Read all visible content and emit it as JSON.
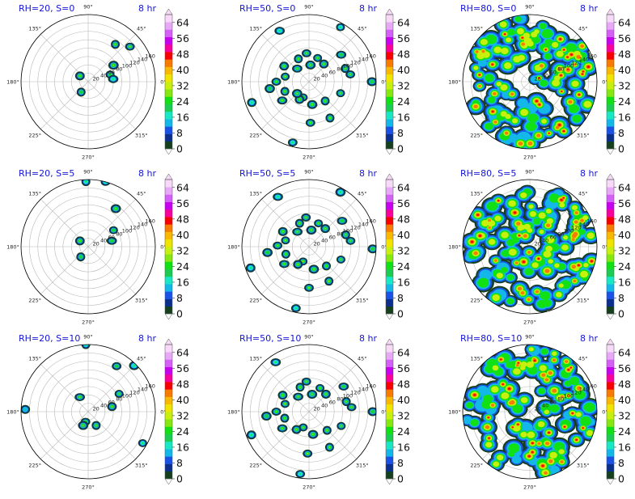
{
  "colorbar": {
    "tick_labels": [
      "0",
      "8",
      "16",
      "24",
      "32",
      "40",
      "48",
      "56",
      "64"
    ],
    "levels": [
      0,
      4,
      8,
      12,
      16,
      20,
      24,
      28,
      32,
      36,
      40,
      44,
      48,
      52,
      56,
      60,
      64,
      68
    ],
    "colors": [
      "#14401e",
      "#0a2f8c",
      "#1a52e8",
      "#14b8e8",
      "#18e8c6",
      "#1ccc52",
      "#10e014",
      "#86e80e",
      "#c8f00e",
      "#f0e400",
      "#f8b800",
      "#f87a00",
      "#f80000",
      "#f8009c",
      "#c800f0",
      "#d460f8",
      "#e8a8f8",
      "#f6daf8"
    ],
    "extend": "both"
  },
  "polar_axis": {
    "angle_labels": [
      "0°",
      "45°",
      "90°",
      "135°",
      "180°",
      "225°",
      "270°",
      "315°"
    ],
    "radial_labels": [
      "20",
      "40",
      "60",
      "80",
      "100",
      "120",
      "140",
      "160"
    ],
    "rmax": 160
  },
  "chart_data": [
    {
      "type": "heatmap",
      "projection": "polar",
      "title": "RH=20, S=0",
      "time": "8 hr",
      "blobs": [
        {
          "theta": 54,
          "r": 110,
          "v": 24
        },
        {
          "theta": 40,
          "r": 130,
          "v": 22
        },
        {
          "theta": 33,
          "r": 72,
          "v": 24
        },
        {
          "theta": 18,
          "r": 55,
          "v": 20
        },
        {
          "theta": 145,
          "r": 24,
          "v": 24
        },
        {
          "theta": 6,
          "r": 60,
          "v": 18
        },
        {
          "theta": 236,
          "r": 30,
          "v": 20
        }
      ]
    },
    {
      "type": "heatmap",
      "projection": "polar",
      "title": "RH=50, S=0",
      "time": "8 hr",
      "blobs": [
        {
          "theta": 300,
          "r": 100,
          "v": 26
        },
        {
          "theta": 272,
          "r": 98,
          "v": 26
        },
        {
          "theta": 278,
          "r": 55,
          "v": 24
        },
        {
          "theta": 250,
          "r": 40,
          "v": 26
        },
        {
          "theta": 242,
          "r": 48,
          "v": 24
        },
        {
          "theta": 215,
          "r": 78,
          "v": 24
        },
        {
          "theta": 202,
          "r": 62,
          "v": 24
        },
        {
          "theta": 180,
          "r": 78,
          "v": 24
        },
        {
          "theta": 190,
          "r": 95,
          "v": 20
        },
        {
          "theta": 168,
          "r": 58,
          "v": 26
        },
        {
          "theta": 148,
          "r": 70,
          "v": 24
        },
        {
          "theta": 132,
          "r": 42,
          "v": 22
        },
        {
          "theta": 115,
          "r": 60,
          "v": 24
        },
        {
          "theta": 95,
          "r": 68,
          "v": 22
        },
        {
          "theta": 85,
          "r": 40,
          "v": 22
        },
        {
          "theta": 70,
          "r": 60,
          "v": 24
        },
        {
          "theta": 50,
          "r": 55,
          "v": 22
        },
        {
          "theta": 40,
          "r": 100,
          "v": 20
        },
        {
          "theta": 20,
          "r": 92,
          "v": 22
        },
        {
          "theta": 10,
          "r": 100,
          "v": 22
        },
        {
          "theta": 0,
          "r": 150,
          "v": 20
        },
        {
          "theta": 340,
          "r": 80,
          "v": 22
        },
        {
          "theta": 200,
          "r": 145,
          "v": 18
        },
        {
          "theta": 120,
          "r": 140,
          "v": 18
        },
        {
          "theta": 310,
          "r": 60,
          "v": 24
        },
        {
          "theta": 255,
          "r": 150,
          "v": 18
        },
        {
          "theta": 225,
          "r": 40,
          "v": 22
        },
        {
          "theta": 60,
          "r": 150,
          "v": 18
        }
      ]
    },
    {
      "type": "heatmap",
      "projection": "polar",
      "title": "RH=80, S=0",
      "time": "8 hr",
      "dense": true,
      "seed": 11,
      "count": 120,
      "rmin": 10,
      "rmax": 152,
      "vmin": 20,
      "vmax": 55,
      "spread": 12
    },
    {
      "type": "heatmap",
      "projection": "polar",
      "title": "RH=20, S=5",
      "time": "8 hr",
      "blobs": [
        {
          "theta": 92,
          "r": 155,
          "v": 18
        },
        {
          "theta": 75,
          "r": 160,
          "v": 16
        },
        {
          "theta": 54,
          "r": 112,
          "v": 24
        },
        {
          "theta": 33,
          "r": 72,
          "v": 20
        },
        {
          "theta": 145,
          "r": 24,
          "v": 24
        },
        {
          "theta": 14,
          "r": 58,
          "v": 20
        },
        {
          "theta": 234,
          "r": 30,
          "v": 20
        }
      ]
    },
    {
      "type": "heatmap",
      "projection": "polar",
      "title": "RH=50, S=5",
      "time": "8 hr",
      "blobs": [
        {
          "theta": 300,
          "r": 95,
          "v": 26
        },
        {
          "theta": 270,
          "r": 98,
          "v": 26
        },
        {
          "theta": 282,
          "r": 55,
          "v": 24
        },
        {
          "theta": 248,
          "r": 38,
          "v": 26
        },
        {
          "theta": 238,
          "r": 50,
          "v": 24
        },
        {
          "theta": 215,
          "r": 72,
          "v": 24
        },
        {
          "theta": 198,
          "r": 58,
          "v": 24
        },
        {
          "theta": 178,
          "r": 75,
          "v": 24
        },
        {
          "theta": 188,
          "r": 100,
          "v": 20
        },
        {
          "theta": 165,
          "r": 58,
          "v": 26
        },
        {
          "theta": 150,
          "r": 72,
          "v": 24
        },
        {
          "theta": 128,
          "r": 45,
          "v": 22
        },
        {
          "theta": 112,
          "r": 60,
          "v": 24
        },
        {
          "theta": 96,
          "r": 70,
          "v": 22
        },
        {
          "theta": 82,
          "r": 40,
          "v": 22
        },
        {
          "theta": 68,
          "r": 60,
          "v": 24
        },
        {
          "theta": 48,
          "r": 58,
          "v": 22
        },
        {
          "theta": 38,
          "r": 100,
          "v": 20
        },
        {
          "theta": 18,
          "r": 92,
          "v": 22
        },
        {
          "theta": 8,
          "r": 100,
          "v": 22
        },
        {
          "theta": 358,
          "r": 152,
          "v": 20
        },
        {
          "theta": 338,
          "r": 82,
          "v": 22
        },
        {
          "theta": 200,
          "r": 148,
          "v": 18
        },
        {
          "theta": 122,
          "r": 140,
          "v": 18
        },
        {
          "theta": 312,
          "r": 62,
          "v": 24
        },
        {
          "theta": 258,
          "r": 150,
          "v": 18
        },
        {
          "theta": 60,
          "r": 150,
          "v": 18
        }
      ]
    },
    {
      "type": "heatmap",
      "projection": "polar",
      "title": "RH=80, S=5",
      "time": "8 hr",
      "dense": true,
      "seed": 23,
      "count": 120,
      "rmin": 10,
      "rmax": 152,
      "vmin": 20,
      "vmax": 55,
      "spread": 12
    },
    {
      "type": "heatmap",
      "projection": "polar",
      "title": "RH=20, S=10",
      "time": "8 hr",
      "blobs": [
        {
          "theta": 92,
          "r": 160,
          "v": 16
        },
        {
          "theta": 58,
          "r": 128,
          "v": 20
        },
        {
          "theta": 45,
          "r": 155,
          "v": 18
        },
        {
          "theta": 30,
          "r": 85,
          "v": 22
        },
        {
          "theta": 12,
          "r": 58,
          "v": 22
        },
        {
          "theta": 120,
          "r": 40,
          "v": 22
        },
        {
          "theta": 300,
          "r": 38,
          "v": 22
        },
        {
          "theta": 255,
          "r": 25,
          "v": 24
        },
        {
          "theta": 250,
          "r": 35,
          "v": 22
        },
        {
          "theta": 330,
          "r": 150,
          "v": 18
        },
        {
          "theta": 178,
          "r": 150,
          "v": 14
        }
      ]
    },
    {
      "type": "heatmap",
      "projection": "polar",
      "title": "RH=50, S=10",
      "time": "8 hr",
      "blobs": [
        {
          "theta": 300,
          "r": 98,
          "v": 26
        },
        {
          "theta": 268,
          "r": 100,
          "v": 26
        },
        {
          "theta": 280,
          "r": 55,
          "v": 24
        },
        {
          "theta": 250,
          "r": 40,
          "v": 24
        },
        {
          "theta": 235,
          "r": 52,
          "v": 24
        },
        {
          "theta": 212,
          "r": 75,
          "v": 24
        },
        {
          "theta": 195,
          "r": 60,
          "v": 24
        },
        {
          "theta": 180,
          "r": 78,
          "v": 24
        },
        {
          "theta": 186,
          "r": 102,
          "v": 20
        },
        {
          "theta": 162,
          "r": 60,
          "v": 26
        },
        {
          "theta": 148,
          "r": 74,
          "v": 24
        },
        {
          "theta": 126,
          "r": 44,
          "v": 22
        },
        {
          "theta": 110,
          "r": 62,
          "v": 24
        },
        {
          "theta": 95,
          "r": 72,
          "v": 22
        },
        {
          "theta": 80,
          "r": 42,
          "v": 22
        },
        {
          "theta": 65,
          "r": 62,
          "v": 24
        },
        {
          "theta": 46,
          "r": 58,
          "v": 22
        },
        {
          "theta": 36,
          "r": 102,
          "v": 20
        },
        {
          "theta": 15,
          "r": 92,
          "v": 22
        },
        {
          "theta": 6,
          "r": 102,
          "v": 22
        },
        {
          "theta": 0,
          "r": 152,
          "v": 20
        },
        {
          "theta": 336,
          "r": 84,
          "v": 22
        },
        {
          "theta": 202,
          "r": 148,
          "v": 18
        },
        {
          "theta": 124,
          "r": 142,
          "v": 18
        },
        {
          "theta": 314,
          "r": 62,
          "v": 24
        },
        {
          "theta": 262,
          "r": 150,
          "v": 18
        }
      ]
    },
    {
      "type": "heatmap",
      "projection": "polar",
      "title": "RH=80, S=10",
      "time": "8 hr",
      "dense": true,
      "seed": 37,
      "count": 120,
      "rmin": 10,
      "rmax": 152,
      "vmin": 20,
      "vmax": 55,
      "spread": 12
    }
  ]
}
